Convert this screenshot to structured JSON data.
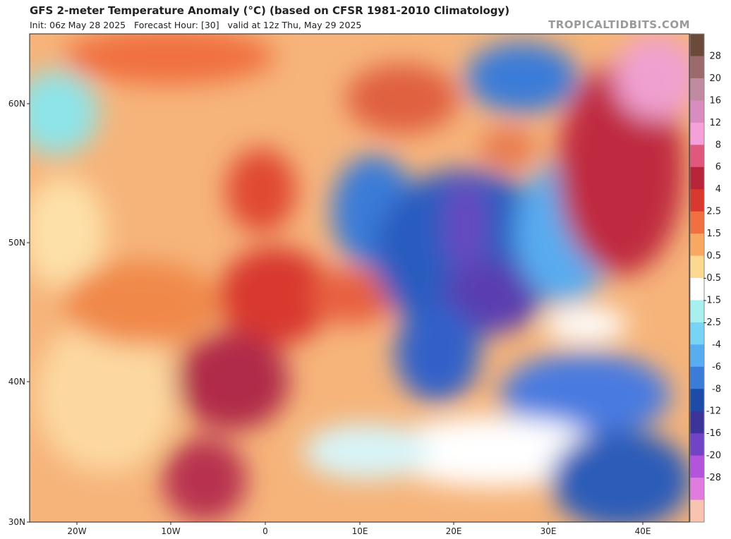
{
  "header": {
    "title": "GFS 2-meter Temperature Anomaly (°C) (based on CFSR 1981-2010 Climatology)",
    "subtitle": "Init: 06z May 28 2025   Forecast Hour: [30]   valid at 12z Thu, May 29 2025",
    "watermark": "TROPICALTIDBITS.COM"
  },
  "axes": {
    "lat": [
      "60N",
      "50N",
      "40N",
      "30N"
    ],
    "lon": [
      "20W",
      "10W",
      "0",
      "10E",
      "20E",
      "30E",
      "40E"
    ]
  },
  "colorbar": {
    "labels": [
      "28",
      "20",
      "16",
      "12",
      "8",
      "6",
      "4",
      "2.5",
      "1.5",
      "0.5",
      "-0.5",
      "-1.5",
      "-2.5",
      "-4",
      "-6",
      "-8",
      "-12",
      "-16",
      "-20",
      "-28"
    ],
    "colors": [
      "#6b4a3a",
      "#9c6a6a",
      "#c08aa0",
      "#d88cc0",
      "#f5a0d8",
      "#e0587c",
      "#b8243a",
      "#d8382e",
      "#f07040",
      "#f8a860",
      "#fcd890",
      "#ffffff",
      "#a8f0f0",
      "#78d4f4",
      "#58acf0",
      "#3a7cd8",
      "#1c4ca8",
      "#3c3498",
      "#7044c4",
      "#b454dc",
      "#e07ce0",
      "#f8c4b0"
    ]
  }
}
